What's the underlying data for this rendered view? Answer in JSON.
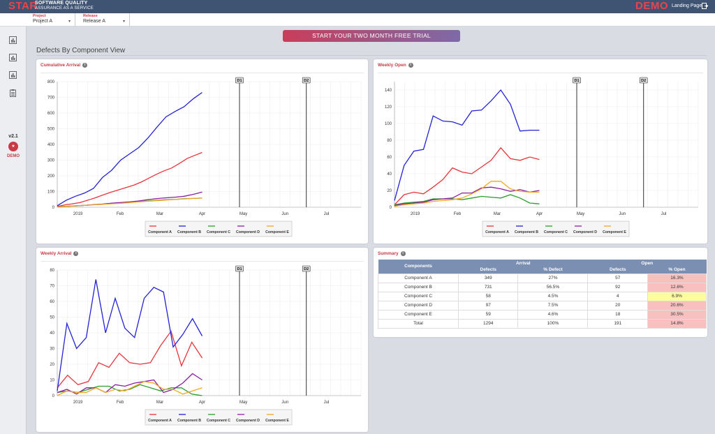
{
  "header": {
    "logo_star": "STAR",
    "logo_line1": "SOFTWARE QUALITY",
    "logo_line2": "ASSURANCE AS A SERVICE",
    "demo": "DEMO",
    "landing": "Landing Page"
  },
  "filters": [
    {
      "label": "Project",
      "value": "Project A"
    },
    {
      "label": "Release",
      "value": "Release A"
    }
  ],
  "sidebar": {
    "version": "v2.1",
    "demo": "DEMO"
  },
  "trial_button": "START YOUR TWO MONTH FREE TRIAL",
  "page_title": "Defects By Component View",
  "colors": {
    "Component A": "#e8343a",
    "Component B": "#2222d6",
    "Component C": "#2aa02a",
    "Component D": "#8a1fa0",
    "Component E": "#f5a623",
    "header": "#3f5373",
    "accent": "#c93a45"
  },
  "chart_data": [
    {
      "type": "line",
      "title": "Cumulative Arrival",
      "ylim": [
        0,
        800
      ],
      "yticks": [
        0,
        100,
        200,
        300,
        400,
        500,
        600,
        700,
        800
      ],
      "x_tick_labels": [
        "2019",
        "Feb",
        "Mar",
        "Apr",
        "May",
        "Jun",
        "Jul"
      ],
      "markers": [
        "D1",
        "D2"
      ],
      "series": [
        {
          "name": "Component A",
          "values": [
            5,
            15,
            22,
            30,
            45,
            60,
            78,
            95,
            110,
            125,
            140,
            160,
            185,
            210,
            232,
            250,
            278,
            310,
            330,
            349
          ]
        },
        {
          "name": "Component B",
          "values": [
            10,
            45,
            70,
            90,
            120,
            190,
            235,
            300,
            340,
            380,
            440,
            510,
            575,
            610,
            640,
            690,
            731
          ]
        },
        {
          "name": "Component C",
          "values": [
            2,
            5,
            8,
            12,
            16,
            20,
            25,
            28,
            32,
            36,
            40,
            44,
            48,
            50,
            54,
            56,
            58
          ]
        },
        {
          "name": "Component D",
          "values": [
            3,
            6,
            9,
            12,
            16,
            20,
            26,
            30,
            34,
            40,
            48,
            55,
            60,
            64,
            70,
            82,
            97
          ]
        },
        {
          "name": "Component E",
          "values": [
            2,
            6,
            9,
            12,
            15,
            18,
            22,
            25,
            30,
            34,
            38,
            42,
            46,
            50,
            53,
            56,
            59
          ]
        }
      ]
    },
    {
      "type": "line",
      "title": "Weekly Open",
      "ylim": [
        0,
        150
      ],
      "yticks": [
        0,
        20,
        40,
        60,
        80,
        100,
        120,
        140
      ],
      "x_tick_labels": [
        "2019",
        "Feb",
        "Mar",
        "Apr",
        "May",
        "Jun",
        "Jul"
      ],
      "markers": [
        "D1",
        "D2"
      ],
      "series": [
        {
          "name": "Component A",
          "values": [
            3,
            15,
            18,
            16,
            24,
            33,
            47,
            42,
            40,
            48,
            56,
            71,
            58,
            56,
            60,
            57
          ]
        },
        {
          "name": "Component B",
          "values": [
            8,
            50,
            67,
            69,
            109,
            103,
            102,
            98,
            115,
            116,
            127,
            140,
            123,
            91,
            92,
            92
          ]
        },
        {
          "name": "Component C",
          "values": [
            3,
            5,
            6,
            7,
            10,
            10,
            10,
            9,
            11,
            13,
            12,
            11,
            15,
            11,
            5,
            4
          ]
        },
        {
          "name": "Component D",
          "values": [
            2,
            4,
            5,
            6,
            9,
            10,
            11,
            17,
            17,
            23,
            24,
            22,
            19,
            21,
            18,
            20
          ]
        },
        {
          "name": "Component E",
          "values": [
            1,
            3,
            4,
            5,
            7,
            8,
            9,
            11,
            16,
            22,
            31,
            31,
            22,
            19,
            18,
            18
          ]
        }
      ]
    },
    {
      "type": "line",
      "title": "Weekly Arrival",
      "ylim": [
        0,
        80
      ],
      "yticks": [
        0,
        10,
        20,
        30,
        40,
        50,
        60,
        70,
        80
      ],
      "x_tick_labels": [
        "2019",
        "Feb",
        "Mar",
        "Apr",
        "May",
        "Jun",
        "Jul"
      ],
      "markers": [
        "D1",
        "D2"
      ],
      "series": [
        {
          "name": "Component A",
          "values": [
            5,
            13,
            7,
            9,
            21,
            18,
            27,
            21,
            20,
            21,
            32,
            41,
            19,
            34,
            24
          ]
        },
        {
          "name": "Component B",
          "values": [
            3,
            46,
            30,
            37,
            74,
            40,
            62,
            43,
            37,
            62,
            69,
            66,
            31,
            39,
            49,
            38
          ]
        },
        {
          "name": "Component C",
          "values": [
            2,
            3,
            2,
            4,
            6,
            6,
            3,
            4,
            7,
            5,
            3,
            5,
            5,
            1,
            0
          ]
        },
        {
          "name": "Component D",
          "values": [
            2,
            4,
            1,
            5,
            5,
            2,
            7,
            6,
            8,
            9,
            10,
            2,
            4,
            8,
            14,
            10
          ]
        },
        {
          "name": "Component E",
          "values": [
            0,
            3,
            2,
            2,
            5,
            2,
            4,
            3,
            6,
            9,
            8,
            4,
            4,
            1,
            3,
            5
          ]
        }
      ]
    }
  ],
  "summary": {
    "title": "Summary",
    "group_headers": [
      "Arrival",
      "Open"
    ],
    "columns": [
      "Components",
      "Defects",
      "% Defect",
      "Defects",
      "% Open"
    ],
    "rows": [
      {
        "component": "Component A",
        "arrival": "349",
        "pct_defect": "27%",
        "open": "57",
        "pct_open": "16.3%",
        "pct_color": "#f9c0c0"
      },
      {
        "component": "Component B",
        "arrival": "731",
        "pct_defect": "56.5%",
        "open": "92",
        "pct_open": "12.6%",
        "pct_color": "#f9c0c0"
      },
      {
        "component": "Component C",
        "arrival": "58",
        "pct_defect": "4.5%",
        "open": "4",
        "pct_open": "6.9%",
        "pct_color": "#fdfda0"
      },
      {
        "component": "Component D",
        "arrival": "97",
        "pct_defect": "7.5%",
        "open": "20",
        "pct_open": "20.6%",
        "pct_color": "#f9c0c0"
      },
      {
        "component": "Component E",
        "arrival": "59",
        "pct_defect": "4.6%",
        "open": "18",
        "pct_open": "30.5%",
        "pct_color": "#f9c0c0"
      },
      {
        "component": "Total",
        "arrival": "1294",
        "pct_defect": "100%",
        "open": "191",
        "pct_open": "14.8%",
        "pct_color": "#f9c0c0"
      }
    ]
  }
}
